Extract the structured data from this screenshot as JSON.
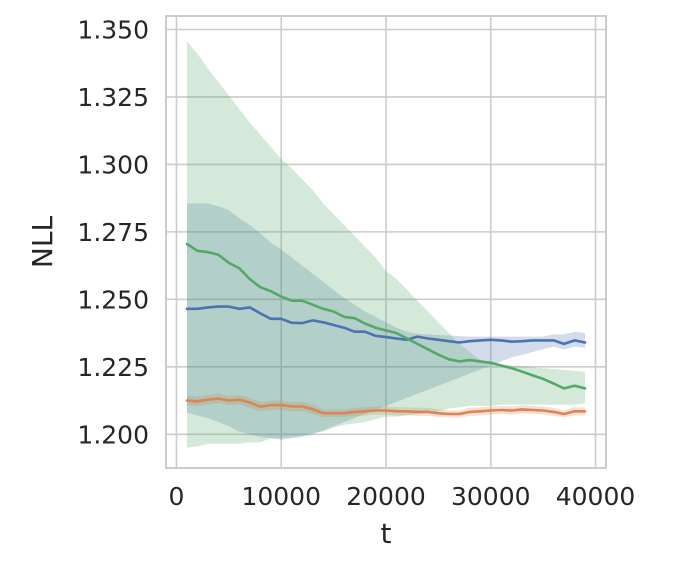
{
  "chart_data": {
    "type": "line",
    "title": "",
    "xlabel": "t",
    "ylabel": "NLL",
    "xlim": [
      -1000,
      41000
    ],
    "ylim": [
      1.1875,
      1.355
    ],
    "xticks": [
      0,
      10000,
      20000,
      30000,
      40000
    ],
    "xtick_labels": [
      "0",
      "10000",
      "20000",
      "30000",
      "40000"
    ],
    "yticks": [
      1.2,
      1.225,
      1.25,
      1.275,
      1.3,
      1.325,
      1.35
    ],
    "ytick_labels": [
      "1.200",
      "1.225",
      "1.250",
      "1.275",
      "1.300",
      "1.325",
      "1.350"
    ],
    "grid": true,
    "legend": "none",
    "x": [
      1000,
      2000,
      3000,
      4000,
      5000,
      6000,
      7000,
      8000,
      9000,
      10000,
      11000,
      12000,
      13000,
      14000,
      15000,
      16000,
      17000,
      18000,
      19000,
      20000,
      21000,
      22000,
      23000,
      24000,
      25000,
      26000,
      27000,
      28000,
      29000,
      30000,
      31000,
      32000,
      33000,
      34000,
      35000,
      36000,
      37000,
      38000,
      39000
    ],
    "series": [
      {
        "color": "#4c72b0",
        "values": [
          1.2465,
          1.2465,
          1.247,
          1.2473,
          1.2473,
          1.2465,
          1.247,
          1.2448,
          1.2428,
          1.2428,
          1.2413,
          1.2412,
          1.2422,
          1.2415,
          1.2405,
          1.2395,
          1.238,
          1.238,
          1.2365,
          1.236,
          1.2355,
          1.235,
          1.2362,
          1.2355,
          1.235,
          1.2345,
          1.234,
          1.2345,
          1.2348,
          1.235,
          1.2348,
          1.2343,
          1.2345,
          1.2348,
          1.2348,
          1.2348,
          1.2335,
          1.2348,
          1.234
        ],
        "lower": [
          1.208,
          1.207,
          1.206,
          1.2045,
          1.203,
          1.201,
          1.2,
          1.199,
          1.1985,
          1.198,
          1.1985,
          1.199,
          1.2,
          1.2015,
          1.203,
          1.2045,
          1.206,
          1.2075,
          1.209,
          1.2105,
          1.212,
          1.2135,
          1.215,
          1.2165,
          1.218,
          1.2195,
          1.221,
          1.2225,
          1.224,
          1.2255,
          1.227,
          1.2285,
          1.2295,
          1.2305,
          1.2315,
          1.2325,
          1.2315,
          1.2325,
          1.232
        ],
        "upper": [
          1.2855,
          1.2855,
          1.2855,
          1.2845,
          1.283,
          1.28,
          1.2775,
          1.2745,
          1.271,
          1.2685,
          1.2655,
          1.2625,
          1.2595,
          1.2565,
          1.2535,
          1.2505,
          1.248,
          1.2455,
          1.2435,
          1.2415,
          1.2395,
          1.238,
          1.2372,
          1.237,
          1.2368,
          1.2366,
          1.2364,
          1.2362,
          1.2362,
          1.2362,
          1.2362,
          1.2362,
          1.2362,
          1.2362,
          1.2362,
          1.237,
          1.237,
          1.238,
          1.2375
        ]
      },
      {
        "color": "#dd8452",
        "values": [
          1.2125,
          1.2122,
          1.2128,
          1.2132,
          1.2125,
          1.2128,
          1.2118,
          1.2102,
          1.2108,
          1.2108,
          1.2103,
          1.2103,
          1.2093,
          1.2078,
          1.2078,
          1.2078,
          1.2083,
          1.2085,
          1.2088,
          1.2088,
          1.2085,
          1.2085,
          1.2083,
          1.2083,
          1.2078,
          1.2075,
          1.2075,
          1.2083,
          1.2085,
          1.2088,
          1.209,
          1.2088,
          1.2092,
          1.209,
          1.2088,
          1.2083,
          1.2075,
          1.2085,
          1.2085
        ],
        "lower": [
          1.2108,
          1.2105,
          1.211,
          1.2115,
          1.2108,
          1.211,
          1.2098,
          1.2085,
          1.209,
          1.209,
          1.2085,
          1.2085,
          1.2075,
          1.2064,
          1.2064,
          1.2064,
          1.2068,
          1.207,
          1.2073,
          1.2073,
          1.207,
          1.207,
          1.2068,
          1.2068,
          1.2064,
          1.2062,
          1.2062,
          1.2068,
          1.207,
          1.2073,
          1.2075,
          1.2073,
          1.2077,
          1.2075,
          1.2073,
          1.2068,
          1.2062,
          1.207,
          1.207
        ],
        "upper": [
          1.2142,
          1.214,
          1.2145,
          1.215,
          1.2142,
          1.2145,
          1.2135,
          1.212,
          1.2125,
          1.2125,
          1.212,
          1.212,
          1.211,
          1.2092,
          1.2092,
          1.2092,
          1.2098,
          1.21,
          1.2103,
          1.2103,
          1.21,
          1.21,
          1.2098,
          1.2098,
          1.2092,
          1.2088,
          1.2088,
          1.2098,
          1.21,
          1.2103,
          1.2105,
          1.2103,
          1.2107,
          1.2105,
          1.2103,
          1.2098,
          1.2088,
          1.21,
          1.21
        ]
      },
      {
        "color": "#55a868",
        "values": [
          1.2705,
          1.268,
          1.2675,
          1.2665,
          1.2635,
          1.2615,
          1.2575,
          1.2545,
          1.253,
          1.251,
          1.2495,
          1.2495,
          1.248,
          1.2465,
          1.2455,
          1.2435,
          1.243,
          1.241,
          1.2395,
          1.2385,
          1.2375,
          1.2355,
          1.2335,
          1.2315,
          1.2295,
          1.2278,
          1.227,
          1.2275,
          1.227,
          1.2265,
          1.2255,
          1.2245,
          1.2232,
          1.2218,
          1.2205,
          1.2188,
          1.217,
          1.218,
          1.217
        ],
        "lower": [
          1.195,
          1.1955,
          1.1965,
          1.1965,
          1.1965,
          1.1965,
          1.197,
          1.197,
          1.1985,
          1.1985,
          1.199,
          1.1995,
          1.2005,
          1.201,
          1.2025,
          1.2035,
          1.204,
          1.2045,
          1.2055,
          1.2065,
          1.2065,
          1.207,
          1.2075,
          1.208,
          1.2085,
          1.2095,
          1.21,
          1.2105,
          1.2105,
          1.2105,
          1.211,
          1.211,
          1.211,
          1.211,
          1.211,
          1.211,
          1.211,
          1.211,
          1.2115
        ],
        "upper": [
          1.3455,
          1.341,
          1.3355,
          1.3305,
          1.3255,
          1.3205,
          1.3155,
          1.311,
          1.3065,
          1.302,
          1.2985,
          1.2945,
          1.2905,
          1.2855,
          1.2815,
          1.2775,
          1.2735,
          1.2695,
          1.2655,
          1.2605,
          1.2575,
          1.2535,
          1.2495,
          1.2455,
          1.2415,
          1.2375,
          1.2335,
          1.2305,
          1.2275,
          1.2262,
          1.2258,
          1.2255,
          1.2252,
          1.2248,
          1.2245,
          1.2242,
          1.2238,
          1.2235,
          1.2232
        ]
      }
    ]
  }
}
